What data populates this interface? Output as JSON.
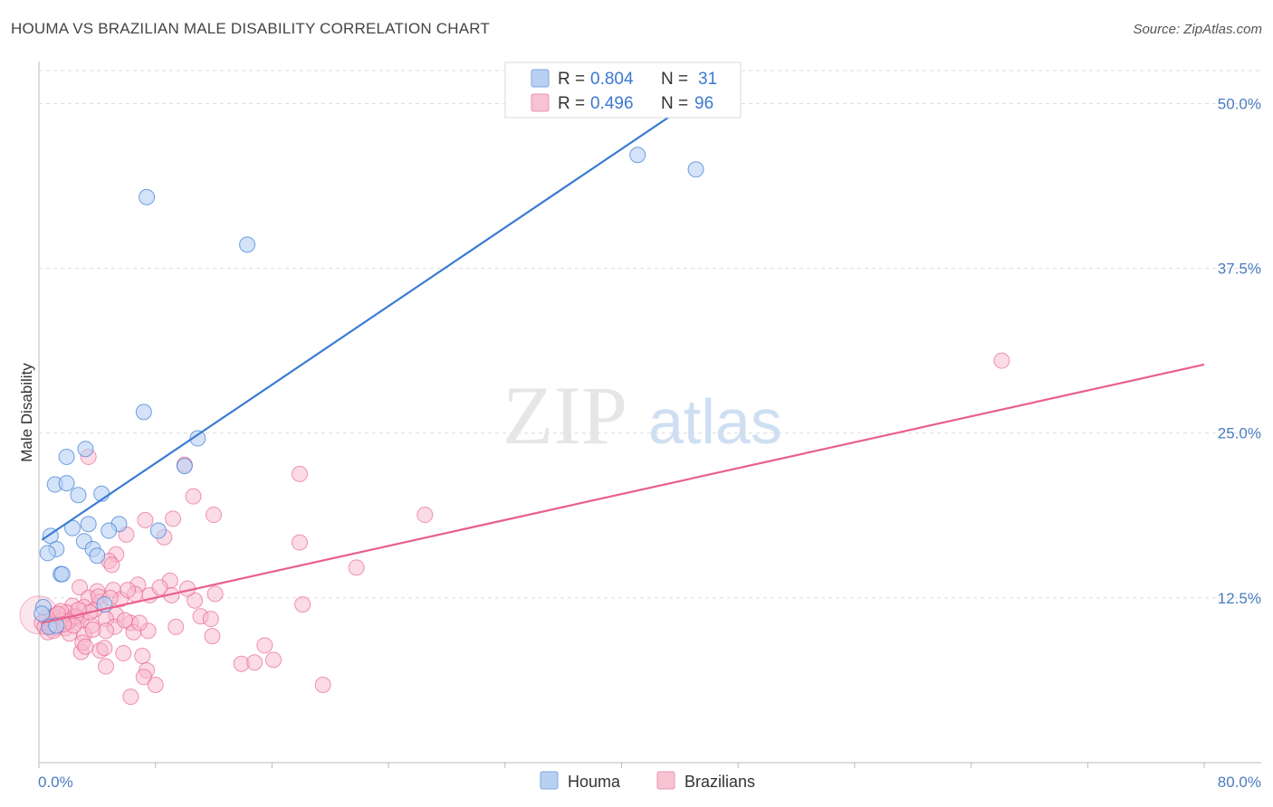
{
  "title": "HOUMA VS BRAZILIAN MALE DISABILITY CORRELATION CHART",
  "source": "Source: ZipAtlas.com",
  "watermark": {
    "zip": "ZIP",
    "atlas": "atlas"
  },
  "colors": {
    "blue": "#3a7bd5",
    "blue_fill": "#b8d1f3",
    "pink": "#e8608c",
    "pink_fill": "#f7b8cc",
    "tick": "#4a7cc0",
    "grid": "#dcdcdc"
  },
  "chart_data": {
    "type": "scatter",
    "title": "HOUMA VS BRAZILIAN MALE DISABILITY CORRELATION CHART",
    "xlabel": "",
    "ylabel": "Male Disability",
    "xlim": [
      0,
      80
    ],
    "ylim": [
      0,
      52.5
    ],
    "x_tick_labels": [
      "0.0%",
      "80.0%"
    ],
    "y_ticks": [
      12.5,
      25.0,
      37.5,
      50.0
    ],
    "y_tick_labels": [
      "12.5%",
      "25.0%",
      "37.5%",
      "50.0%"
    ],
    "legend": [
      {
        "series": "Houma",
        "r_label": "R =",
        "r_value": "0.804",
        "n_label": "N =",
        "n_value": "31"
      },
      {
        "series": "Brazilians",
        "r_label": "R =",
        "r_value": "0.496",
        "n_label": "N =",
        "n_value": "96"
      }
    ],
    "series": [
      {
        "name": "Houma",
        "color": "#3a7bd5",
        "trendline": [
          [
            0.2,
            16.9
          ],
          [
            45.3,
            50.5
          ]
        ],
        "points": [
          [
            7.4,
            42.9
          ],
          [
            14.3,
            39.3
          ],
          [
            41.1,
            46.1
          ],
          [
            45.1,
            45.0
          ],
          [
            7.2,
            26.6
          ],
          [
            10.9,
            24.6
          ],
          [
            3.2,
            23.8
          ],
          [
            10.0,
            22.5
          ],
          [
            1.9,
            23.2
          ],
          [
            1.1,
            21.1
          ],
          [
            1.9,
            21.2
          ],
          [
            2.7,
            20.3
          ],
          [
            4.3,
            20.4
          ],
          [
            5.5,
            18.1
          ],
          [
            3.4,
            18.1
          ],
          [
            2.3,
            17.8
          ],
          [
            4.8,
            17.6
          ],
          [
            8.2,
            17.6
          ],
          [
            0.8,
            17.2
          ],
          [
            3.1,
            16.8
          ],
          [
            3.7,
            16.2
          ],
          [
            1.2,
            16.2
          ],
          [
            0.6,
            15.9
          ],
          [
            4.0,
            15.7
          ],
          [
            1.5,
            14.3
          ],
          [
            1.6,
            14.3
          ],
          [
            0.3,
            11.8
          ],
          [
            0.2,
            11.3
          ],
          [
            4.5,
            12.0
          ],
          [
            0.7,
            10.3
          ],
          [
            1.2,
            10.4
          ]
        ]
      },
      {
        "name": "Brazilians",
        "color": "#e8608c",
        "trendline": [
          [
            0.2,
            10.6
          ],
          [
            80.0,
            30.2
          ]
        ],
        "points": [
          [
            66.1,
            30.5
          ],
          [
            3.4,
            23.2
          ],
          [
            17.9,
            21.9
          ],
          [
            10.0,
            22.6
          ],
          [
            10.6,
            20.2
          ],
          [
            26.5,
            18.8
          ],
          [
            12.0,
            18.8
          ],
          [
            9.2,
            18.5
          ],
          [
            7.3,
            18.4
          ],
          [
            6.0,
            17.3
          ],
          [
            8.6,
            17.1
          ],
          [
            17.9,
            16.7
          ],
          [
            5.3,
            15.8
          ],
          [
            4.8,
            15.3
          ],
          [
            5.0,
            15.0
          ],
          [
            21.8,
            14.8
          ],
          [
            9.0,
            13.8
          ],
          [
            6.8,
            13.5
          ],
          [
            2.8,
            13.3
          ],
          [
            5.1,
            13.1
          ],
          [
            6.6,
            12.8
          ],
          [
            4.0,
            13.0
          ],
          [
            3.4,
            12.5
          ],
          [
            7.6,
            12.7
          ],
          [
            9.1,
            12.7
          ],
          [
            10.7,
            12.3
          ],
          [
            12.1,
            12.8
          ],
          [
            4.2,
            12.2
          ],
          [
            10.2,
            13.2
          ],
          [
            18.1,
            12.0
          ],
          [
            2.3,
            11.9
          ],
          [
            3.1,
            11.8
          ],
          [
            1.2,
            11.2
          ],
          [
            1.9,
            11.4
          ],
          [
            5.3,
            11.2
          ],
          [
            2.6,
            11.0
          ],
          [
            0.9,
            11.1
          ],
          [
            1.6,
            10.8
          ],
          [
            2.9,
            10.8
          ],
          [
            0.2,
            10.6
          ],
          [
            1.4,
            10.5
          ],
          [
            0.7,
            10.4
          ],
          [
            3.6,
            10.4
          ],
          [
            4.6,
            10.9
          ],
          [
            6.3,
            10.6
          ],
          [
            5.2,
            10.3
          ],
          [
            11.1,
            11.1
          ],
          [
            9.4,
            10.3
          ],
          [
            11.8,
            10.9
          ],
          [
            0.4,
            10.3
          ],
          [
            1.1,
            10.2
          ],
          [
            1.8,
            10.2
          ],
          [
            0.6,
            9.9
          ],
          [
            2.1,
            9.8
          ],
          [
            3.1,
            9.7
          ],
          [
            4.6,
            10.0
          ],
          [
            6.5,
            9.9
          ],
          [
            7.5,
            10.0
          ],
          [
            11.9,
            9.6
          ],
          [
            2.9,
            8.4
          ],
          [
            4.2,
            8.5
          ],
          [
            3.0,
            9.1
          ],
          [
            3.2,
            8.8
          ],
          [
            4.5,
            8.7
          ],
          [
            5.8,
            8.3
          ],
          [
            7.1,
            8.1
          ],
          [
            15.5,
            8.9
          ],
          [
            16.1,
            7.8
          ],
          [
            13.9,
            7.5
          ],
          [
            14.8,
            7.6
          ],
          [
            4.6,
            7.3
          ],
          [
            7.4,
            7.0
          ],
          [
            7.2,
            6.5
          ],
          [
            8.0,
            5.9
          ],
          [
            6.3,
            5.0
          ],
          [
            19.5,
            5.9
          ],
          [
            0.8,
            10.5
          ],
          [
            1.5,
            11.5
          ],
          [
            2.5,
            11.1
          ],
          [
            3.8,
            11.6
          ],
          [
            5.6,
            12.4
          ],
          [
            8.3,
            13.3
          ],
          [
            4.1,
            12.6
          ],
          [
            3.5,
            11.4
          ],
          [
            2.0,
            10.7
          ],
          [
            6.9,
            10.6
          ],
          [
            1.0,
            10.0
          ],
          [
            2.4,
            10.4
          ],
          [
            0.5,
            11.0
          ],
          [
            1.3,
            11.3
          ],
          [
            4.9,
            12.5
          ],
          [
            6.1,
            13.1
          ],
          [
            3.7,
            10.1
          ],
          [
            2.7,
            11.6
          ],
          [
            1.7,
            10.5
          ],
          [
            5.9,
            10.8
          ]
        ]
      }
    ]
  }
}
